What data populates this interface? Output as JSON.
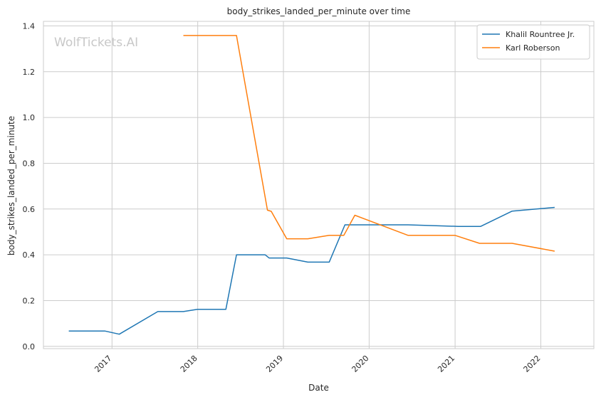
{
  "chart_data": {
    "type": "line",
    "title": "body_strikes_landed_per_minute over time",
    "xlabel": "Date",
    "ylabel": "body_strikes_landed_per_minute",
    "watermark": "WolfTickets.AI",
    "xlim": [
      "2016-03-15",
      "2022-08-15"
    ],
    "ylim": [
      -0.01,
      1.42
    ],
    "x_ticks": [
      {
        "date": "2017-01-01",
        "label": "2017"
      },
      {
        "date": "2018-01-01",
        "label": "2018"
      },
      {
        "date": "2019-01-01",
        "label": "2019"
      },
      {
        "date": "2020-01-01",
        "label": "2020"
      },
      {
        "date": "2021-01-01",
        "label": "2021"
      },
      {
        "date": "2022-01-01",
        "label": "2022"
      }
    ],
    "y_ticks": [
      {
        "value": 0.0,
        "label": "0.0"
      },
      {
        "value": 0.2,
        "label": "0.2"
      },
      {
        "value": 0.4,
        "label": "0.4"
      },
      {
        "value": 0.6,
        "label": "0.6"
      },
      {
        "value": 0.8,
        "label": "0.8"
      },
      {
        "value": 1.0,
        "label": "1.0"
      },
      {
        "value": 1.2,
        "label": "1.2"
      },
      {
        "value": 1.4,
        "label": "1.4"
      }
    ],
    "grid": true,
    "legend_position": "top-right",
    "series": [
      {
        "name": "Khalil Rountree Jr.",
        "color": "#1f77b4",
        "points": [
          {
            "x": "2016-07-01",
            "y": 0.067
          },
          {
            "x": "2016-12-01",
            "y": 0.067
          },
          {
            "x": "2017-02-01",
            "y": 0.053
          },
          {
            "x": "2017-07-15",
            "y": 0.152
          },
          {
            "x": "2017-11-01",
            "y": 0.152
          },
          {
            "x": "2017-12-31",
            "y": 0.162
          },
          {
            "x": "2018-05-01",
            "y": 0.162
          },
          {
            "x": "2018-06-15",
            "y": 0.4
          },
          {
            "x": "2018-10-15",
            "y": 0.4
          },
          {
            "x": "2018-11-01",
            "y": 0.386
          },
          {
            "x": "2019-01-15",
            "y": 0.386
          },
          {
            "x": "2019-04-15",
            "y": 0.368
          },
          {
            "x": "2019-07-15",
            "y": 0.368
          },
          {
            "x": "2019-09-20",
            "y": 0.531
          },
          {
            "x": "2020-06-15",
            "y": 0.531
          },
          {
            "x": "2021-01-15",
            "y": 0.524
          },
          {
            "x": "2021-04-20",
            "y": 0.524
          },
          {
            "x": "2021-09-01",
            "y": 0.591
          },
          {
            "x": "2022-03-01",
            "y": 0.607
          }
        ]
      },
      {
        "name": "Karl Roberson",
        "color": "#ff7f0e",
        "points": [
          {
            "x": "2017-11-01",
            "y": 1.358
          },
          {
            "x": "2018-06-15",
            "y": 1.358
          },
          {
            "x": "2018-10-25",
            "y": 0.595
          },
          {
            "x": "2018-11-10",
            "y": 0.59
          },
          {
            "x": "2019-01-15",
            "y": 0.47
          },
          {
            "x": "2019-04-15",
            "y": 0.47
          },
          {
            "x": "2019-07-15",
            "y": 0.485
          },
          {
            "x": "2019-09-15",
            "y": 0.485
          },
          {
            "x": "2019-11-01",
            "y": 0.573
          },
          {
            "x": "2020-06-15",
            "y": 0.485
          },
          {
            "x": "2021-01-01",
            "y": 0.485
          },
          {
            "x": "2021-04-15",
            "y": 0.45
          },
          {
            "x": "2021-09-01",
            "y": 0.45
          },
          {
            "x": "2022-03-01",
            "y": 0.416
          }
        ]
      }
    ]
  }
}
